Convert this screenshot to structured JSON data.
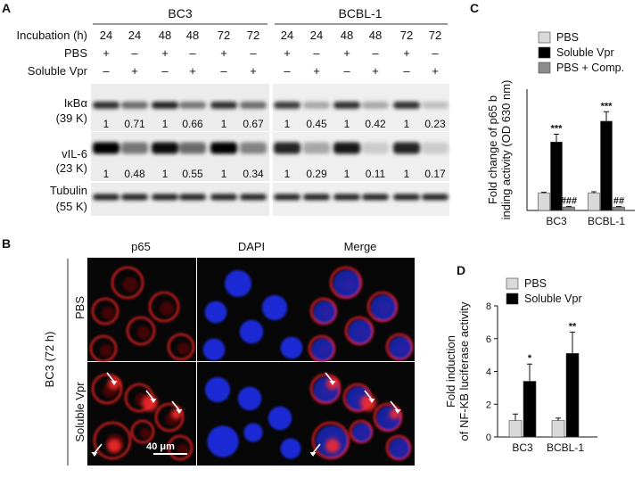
{
  "panels": {
    "A": {
      "letter": "A",
      "cell_lines": [
        "BC3",
        "BCBL-1"
      ],
      "incubation_label": "Incubation (h)",
      "incubation_values": [
        "24",
        "24",
        "48",
        "48",
        "72",
        "72",
        "24",
        "24",
        "48",
        "48",
        "72",
        "72"
      ],
      "pbs_label": "PBS",
      "pbs_values": [
        "+",
        "–",
        "+",
        "–",
        "+",
        "–",
        "+",
        "–",
        "+",
        "–",
        "+",
        "–"
      ],
      "vpr_label": "Soluble Vpr",
      "vpr_values": [
        "–",
        "+",
        "–",
        "+",
        "–",
        "+",
        "–",
        "+",
        "–",
        "+",
        "–",
        "+"
      ],
      "blots": [
        {
          "name": "IκBα",
          "size": "(39 K)",
          "values": [
            "1",
            "0.71",
            "1",
            "0.66",
            "1",
            "0.67",
            "1",
            "0.45",
            "1",
            "0.42",
            "1",
            "0.23"
          ],
          "intensity": [
            0.8,
            0.55,
            0.85,
            0.5,
            0.8,
            0.55,
            0.75,
            0.3,
            0.8,
            0.3,
            0.8,
            0.2
          ]
        },
        {
          "name": "vIL-6",
          "size": "(23 K)",
          "values": [
            "1",
            "0.48",
            "1",
            "0.55",
            "1",
            "0.34",
            "1",
            "0.29",
            "1",
            "0.11",
            "1",
            "0.17"
          ],
          "intensity": [
            1.0,
            0.5,
            0.95,
            0.55,
            1.0,
            0.45,
            0.85,
            0.3,
            0.9,
            0.15,
            0.85,
            0.15
          ]
        },
        {
          "name": "Tubulin",
          "size": "(55 K)",
          "values": [],
          "intensity": [
            0.85,
            0.85,
            0.85,
            0.85,
            0.85,
            0.85,
            0.85,
            0.85,
            0.85,
            0.85,
            0.85,
            0.85
          ]
        }
      ]
    },
    "B": {
      "letter": "B",
      "columns": [
        "p65",
        "DAPI",
        "Merge"
      ],
      "rows": [
        "PBS",
        "Soluble Vpr"
      ],
      "side_label": "BC3 (72 h)",
      "scale_bar": "40 μm"
    },
    "C": {
      "letter": "C",
      "chart_data": {
        "type": "bar",
        "categories": [
          "BC3",
          "BCBL-1"
        ],
        "series": [
          {
            "name": "PBS",
            "values": [
              1.0,
              1.0
            ],
            "errors": [
              0.05,
              0.08
            ],
            "color": "#d9d9d9"
          },
          {
            "name": "Soluble Vpr",
            "values": [
              3.95,
              5.15
            ],
            "errors": [
              0.45,
              0.55
            ],
            "color": "#000000"
          },
          {
            "name": "PBS + Comp.",
            "values": [
              0.2,
              0.2
            ],
            "errors": [
              0.03,
              0.03
            ],
            "color": "#8c8c8c"
          }
        ],
        "annotations": [
          [
            "",
            "***",
            "###"
          ],
          [
            "",
            "***",
            "##"
          ]
        ],
        "ylabel": "Fold change of p65 binding activity (OD 630 nm)",
        "ylim": [
          0,
          7
        ],
        "legend": "top"
      }
    },
    "D": {
      "letter": "D",
      "chart_data": {
        "type": "bar",
        "categories": [
          "BC3",
          "BCBL-1"
        ],
        "series": [
          {
            "name": "PBS",
            "values": [
              1.0,
              1.0
            ],
            "errors": [
              0.4,
              0.15
            ],
            "color": "#d9d9d9"
          },
          {
            "name": "Soluble Vpr",
            "values": [
              3.4,
              5.1
            ],
            "errors": [
              1.05,
              1.3
            ],
            "color": "#000000"
          }
        ],
        "annotations": [
          [
            "",
            "*"
          ],
          [
            "",
            "**"
          ]
        ],
        "ylabel": "Fold induction of NF-KB luciferase activity",
        "yticks": [
          0,
          2,
          4,
          6,
          8
        ],
        "ylim": [
          0,
          8
        ],
        "legend": "top"
      }
    }
  }
}
